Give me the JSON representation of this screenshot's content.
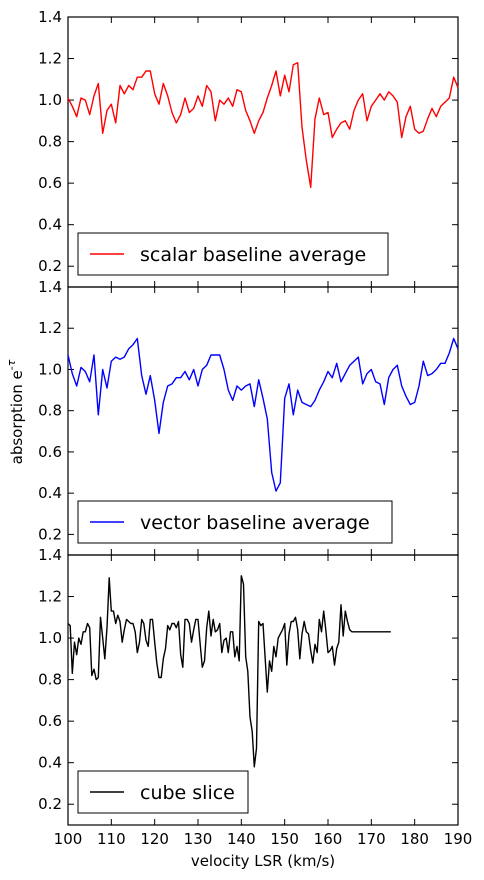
{
  "chart_data": {
    "type": "line",
    "xlabel": "velocity LSR (km/s)",
    "ylabel": "absorption e",
    "ylabel_superscript": "-τ",
    "xlim": [
      100,
      190
    ],
    "x_ticks": [
      "100",
      "110",
      "120",
      "130",
      "140",
      "150",
      "160",
      "170",
      "180",
      "190"
    ],
    "panels": [
      {
        "legend": "scalar baseline average",
        "color": "#ff0000",
        "ylim": [
          0.1,
          1.4
        ],
        "y_ticks": [
          "0.2",
          "0.4",
          "0.6",
          "0.8",
          "1.0",
          "1.2",
          "1.4"
        ],
        "x": [
          100,
          101,
          102,
          103,
          104,
          105,
          106,
          107,
          108,
          109,
          110,
          111,
          112,
          113,
          114,
          115,
          116,
          117,
          118,
          119,
          120,
          121,
          122,
          123,
          124,
          125,
          126,
          127,
          128,
          129,
          130,
          131,
          132,
          133,
          134,
          135,
          136,
          137,
          138,
          139,
          140,
          141,
          142,
          143,
          144,
          145,
          146,
          147,
          148,
          149,
          150,
          151,
          152,
          153,
          154,
          155,
          156,
          157,
          158,
          159,
          160,
          161,
          162,
          163,
          164,
          165,
          166,
          167,
          168,
          169,
          170,
          171,
          172,
          173,
          174,
          175,
          176,
          177,
          178,
          179,
          180,
          181,
          182,
          183,
          184,
          185,
          186,
          187,
          188,
          189,
          190
        ],
        "y": [
          1.01,
          0.97,
          0.92,
          1.01,
          1.0,
          0.93,
          1.02,
          1.08,
          0.84,
          0.95,
          0.98,
          0.89,
          1.07,
          1.03,
          1.07,
          1.05,
          1.11,
          1.11,
          1.14,
          1.14,
          1.03,
          0.98,
          1.08,
          1.02,
          0.94,
          0.89,
          0.93,
          1.01,
          0.94,
          0.96,
          1.02,
          0.97,
          1.07,
          1.04,
          0.9,
          1.0,
          0.98,
          1.01,
          0.97,
          1.05,
          1.04,
          0.95,
          0.9,
          0.84,
          0.9,
          0.94,
          1.01,
          1.07,
          1.14,
          1.02,
          1.12,
          1.04,
          1.17,
          1.18,
          0.87,
          0.71,
          0.58,
          0.91,
          1.01,
          0.93,
          0.94,
          0.82,
          0.86,
          0.89,
          0.9,
          0.86,
          0.95,
          1.0,
          1.03,
          0.9,
          0.97,
          1.0,
          1.03,
          1.0,
          1.04,
          1.02,
          0.99,
          0.82,
          0.92,
          0.97,
          0.86,
          0.84,
          0.85,
          0.91,
          0.96,
          0.92,
          0.97,
          0.99,
          1.1,
          1.06,
          0.92
        ],
        "y_override_tail": [
          1.01,
          1.11,
          1.06
        ]
      },
      {
        "legend": "vector baseline average",
        "color": "#0000ff",
        "ylim": [
          0.1,
          1.4
        ],
        "y_ticks": [
          "0.2",
          "0.4",
          "0.6",
          "0.8",
          "1.0",
          "1.2",
          "1.4"
        ],
        "x": [
          100,
          101,
          102,
          103,
          104,
          105,
          106,
          107,
          108,
          109,
          110,
          111,
          112,
          113,
          114,
          115,
          116,
          117,
          118,
          119,
          120,
          121,
          122,
          123,
          124,
          125,
          126,
          127,
          128,
          129,
          130,
          131,
          132,
          133,
          134,
          135,
          136,
          137,
          138,
          139,
          140,
          141,
          142,
          143,
          144,
          145,
          146,
          147,
          148,
          149,
          150,
          151,
          152,
          153,
          154,
          155,
          156,
          157,
          158,
          159,
          160,
          161,
          162,
          163,
          164,
          165,
          166,
          167,
          168,
          169,
          170,
          171,
          172,
          173,
          174,
          175,
          176,
          177,
          178,
          179,
          180,
          181,
          182,
          183,
          184,
          185,
          186,
          187,
          188,
          189,
          190
        ],
        "y": [
          1.07,
          0.98,
          0.92,
          1.01,
          0.99,
          0.94,
          1.07,
          0.78,
          1.0,
          0.91,
          1.04,
          1.06,
          1.05,
          1.06,
          1.1,
          1.12,
          1.15,
          0.97,
          0.88,
          0.97,
          0.85,
          0.69,
          0.84,
          0.92,
          0.93,
          0.96,
          0.96,
          0.99,
          0.95,
          1.0,
          0.92,
          1.0,
          1.02,
          1.07,
          1.07,
          1.07,
          1.0,
          0.9,
          0.85,
          0.92,
          0.9,
          0.92,
          0.93,
          0.82,
          0.95,
          0.86,
          0.76,
          0.5,
          0.41,
          0.45,
          0.86,
          0.93,
          0.78,
          0.9,
          0.84,
          0.83,
          0.82,
          0.85,
          0.9,
          0.94,
          0.99,
          0.96,
          1.03,
          0.94,
          0.98,
          1.02,
          1.04,
          1.06,
          0.93,
          0.98,
          1.0,
          0.94,
          0.93,
          0.83,
          0.96,
          1.0,
          1.02,
          0.92,
          0.87,
          0.83,
          0.84,
          0.92,
          1.04,
          0.97,
          0.98,
          1.0,
          1.03,
          1.03,
          1.08,
          1.15,
          1.1
        ],
        "y_override_tail": []
      },
      {
        "legend": "cube slice",
        "color": "#000000",
        "ylim": [
          0.1,
          1.4
        ],
        "y_ticks": [
          "0.2",
          "0.4",
          "0.6",
          "0.8",
          "1.0",
          "1.2",
          "1.4"
        ],
        "x": [
          100,
          100.5,
          101,
          101.5,
          102,
          102.5,
          103,
          103.5,
          104,
          104.5,
          105,
          105.5,
          106,
          106.5,
          107,
          107.5,
          108,
          108.5,
          109,
          109.5,
          110,
          110.5,
          111,
          111.5,
          112,
          112.5,
          113,
          113.5,
          114,
          114.5,
          115,
          115.5,
          116,
          116.5,
          117,
          117.5,
          118,
          118.5,
          119,
          119.5,
          120,
          120.5,
          121,
          121.5,
          122,
          122.5,
          123,
          123.5,
          124,
          124.5,
          125,
          125.5,
          126,
          126.5,
          127,
          127.5,
          128,
          128.5,
          129,
          129.5,
          130,
          130.5,
          131,
          131.5,
          132,
          132.5,
          133,
          133.5,
          134,
          134.5,
          135,
          135.5,
          136,
          136.5,
          137,
          137.5,
          138,
          138.5,
          139,
          139.5,
          140,
          140.5,
          141,
          141.5,
          142,
          142.5,
          143,
          143.5,
          144,
          144.5,
          145,
          145.5,
          146,
          146.5,
          147,
          147.5,
          148,
          148.5,
          149,
          149.5,
          150,
          150.5,
          151,
          151.5,
          152,
          152.5,
          153,
          153.5,
          154,
          154.5,
          155,
          155.5,
          156,
          156.5,
          157,
          157.5,
          158,
          158.5,
          159,
          159.5,
          160,
          160.5,
          161,
          161.5,
          162,
          162.5,
          163,
          163.5,
          164,
          164.5,
          165,
          165.5,
          166,
          166.5,
          167,
          167.5,
          168,
          168.5,
          169,
          169.5,
          170,
          170.5,
          171,
          171.5,
          172,
          172.5,
          173,
          173.5,
          174,
          174.5
        ],
        "y": [
          1.07,
          1.06,
          0.83,
          0.98,
          0.92,
          1.0,
          0.97,
          1.03,
          1.03,
          1.07,
          1.05,
          0.82,
          0.85,
          0.8,
          0.81,
          1.1,
          1.0,
          0.9,
          1.05,
          1.29,
          1.13,
          1.13,
          1.07,
          1.11,
          1.08,
          0.98,
          1.04,
          1.09,
          1.08,
          1.07,
          1.07,
          1.03,
          0.93,
          0.98,
          1.09,
          1.07,
          0.99,
          0.96,
          1.09,
          1.09,
          0.98,
          0.88,
          0.81,
          0.81,
          0.9,
          0.95,
          1.06,
          1.04,
          1.07,
          1.07,
          1.05,
          1.08,
          0.92,
          0.86,
          1.09,
          1.09,
          1.07,
          0.98,
          1.04,
          1.09,
          1.09,
          0.97,
          0.86,
          0.89,
          1.05,
          1.13,
          1.01,
          1.09,
          1.03,
          1.04,
          1.07,
          0.93,
          0.99,
          1.0,
          0.93,
          1.03,
          1.03,
          0.91,
          0.96,
          0.89,
          1.3,
          1.26,
          0.91,
          0.84,
          0.62,
          0.55,
          0.38,
          0.47,
          1.08,
          1.06,
          1.07,
          0.9,
          0.74,
          0.89,
          0.84,
          0.96,
          0.91,
          1.0,
          1.02,
          1.04,
          1.07,
          0.87,
          1.02,
          1.08,
          1.08,
          1.1,
          1.04,
          0.9,
          1.02,
          1.08,
          1.03,
          1.02,
          0.94,
          0.88,
          0.97,
          0.93,
          1.09,
          1.03,
          1.13,
          1.04,
          0.93,
          0.94,
          0.96,
          0.87,
          0.95,
          0.98,
          1.16,
          1.01,
          1.13,
          1.08,
          1.04,
          1.03,
          1.03,
          1.03,
          1.03,
          1.03,
          1.03,
          1.03,
          1.03,
          1.03,
          1.03,
          1.03,
          1.03,
          1.03,
          1.03,
          1.03,
          1.03,
          1.03,
          1.03,
          1.03
        ],
        "y_override_tail": []
      }
    ]
  }
}
